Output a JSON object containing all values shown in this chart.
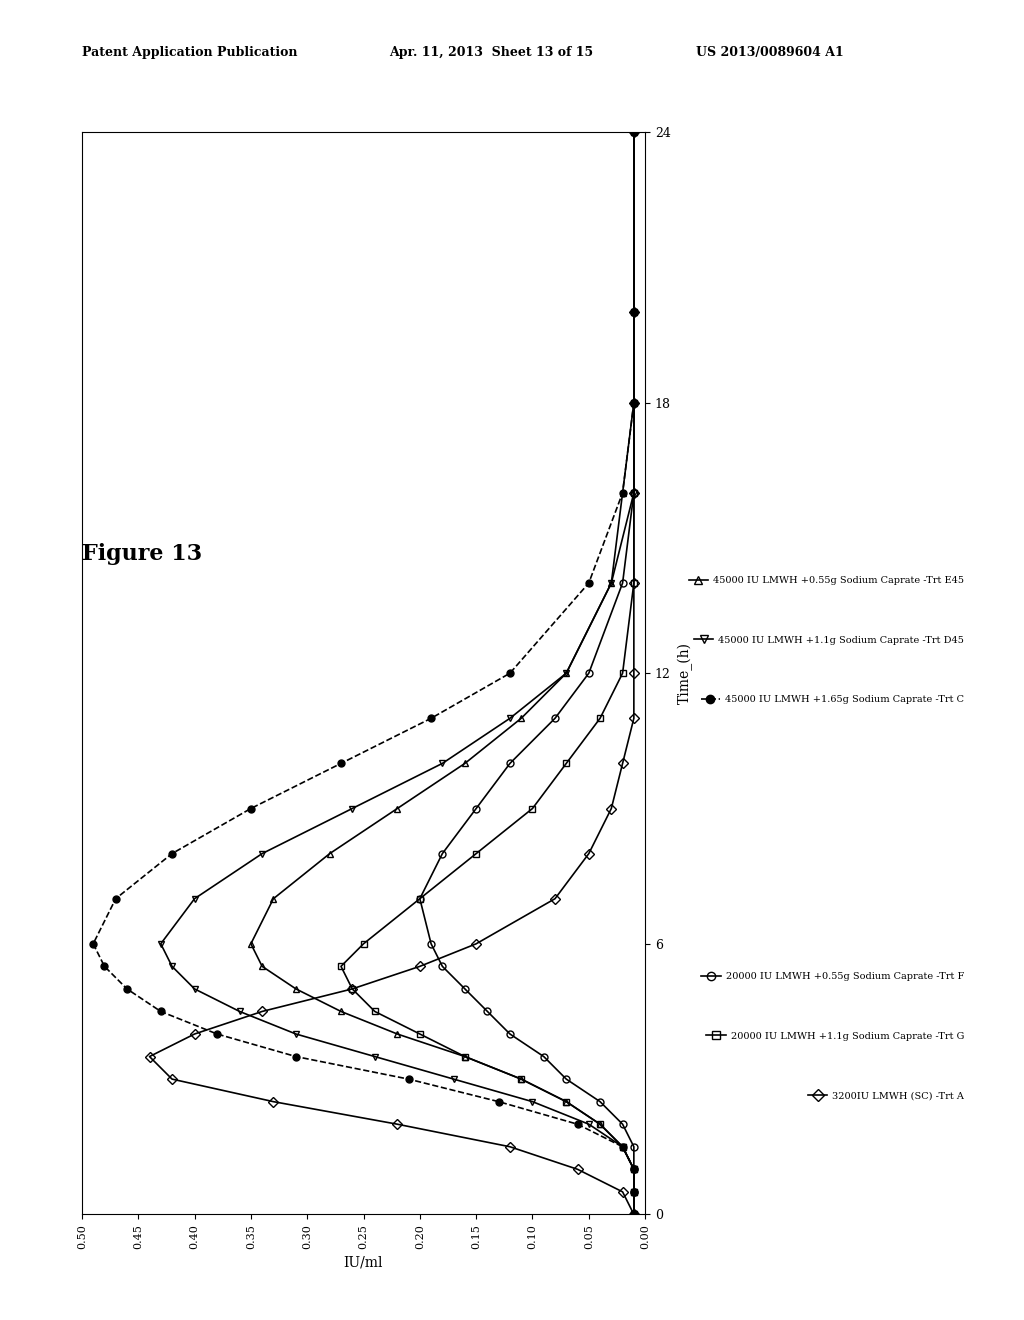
{
  "title": "Figure 13",
  "xlabel": "Time_(h)",
  "ylabel": "IU/ml",
  "header_left": "Patent Application Publication",
  "header_mid": "Apr. 11, 2013  Sheet 13 of 15",
  "header_right": "US 2013/0089604 A1",
  "xlim": [
    0,
    24
  ],
  "ylim": [
    0,
    0.5
  ],
  "xticks": [
    0,
    6,
    12,
    18,
    24
  ],
  "yticks": [
    0.0,
    0.05,
    0.1,
    0.15,
    0.2,
    0.25,
    0.3,
    0.35,
    0.4,
    0.45,
    0.5
  ],
  "series": [
    {
      "label": "20000 IU LMWH +0.55g Sodium Caprate -Trt F",
      "marker": "o",
      "fillstyle": "none",
      "color": "black",
      "linestyle": "-",
      "time": [
        0,
        0.5,
        1,
        1.5,
        2,
        2.5,
        3,
        3.5,
        4,
        4.5,
        5,
        5.5,
        6,
        7,
        8,
        9,
        10,
        11,
        12,
        14,
        16,
        18,
        20,
        24
      ],
      "values": [
        0.01,
        0.01,
        0.01,
        0.01,
        0.02,
        0.04,
        0.07,
        0.09,
        0.12,
        0.14,
        0.16,
        0.18,
        0.19,
        0.2,
        0.18,
        0.15,
        0.12,
        0.08,
        0.05,
        0.02,
        0.01,
        0.01,
        0.01,
        0.01
      ]
    },
    {
      "label": "20000 IU LMWH +1.1g Sodium Caprate -Trt G",
      "marker": "s",
      "fillstyle": "none",
      "color": "black",
      "linestyle": "-",
      "time": [
        0,
        0.5,
        1,
        1.5,
        2,
        2.5,
        3,
        3.5,
        4,
        4.5,
        5,
        5.5,
        6,
        7,
        8,
        9,
        10,
        11,
        12,
        14,
        16,
        18,
        20,
        24
      ],
      "values": [
        0.01,
        0.01,
        0.01,
        0.02,
        0.04,
        0.07,
        0.11,
        0.16,
        0.2,
        0.24,
        0.26,
        0.27,
        0.25,
        0.2,
        0.15,
        0.1,
        0.07,
        0.04,
        0.02,
        0.01,
        0.01,
        0.01,
        0.01,
        0.01
      ]
    },
    {
      "label": "3200IU LMWH (SC) -Trt A",
      "marker": "D",
      "fillstyle": "none",
      "color": "black",
      "linestyle": "-",
      "time": [
        0,
        0.5,
        1,
        1.5,
        2,
        2.5,
        3,
        3.5,
        4,
        4.5,
        5,
        5.5,
        6,
        7,
        8,
        9,
        10,
        11,
        12,
        14,
        16,
        18,
        20,
        24
      ],
      "values": [
        0.01,
        0.02,
        0.06,
        0.12,
        0.22,
        0.33,
        0.42,
        0.44,
        0.4,
        0.34,
        0.26,
        0.2,
        0.15,
        0.08,
        0.05,
        0.03,
        0.02,
        0.01,
        0.01,
        0.01,
        0.01,
        0.01,
        0.01,
        0.01
      ]
    },
    {
      "label": "45000 IU LMWH +0.55g Sodium Caprate -Trt E45",
      "marker": "^",
      "fillstyle": "none",
      "color": "black",
      "linestyle": "-",
      "time": [
        0,
        0.5,
        1,
        1.5,
        2,
        2.5,
        3,
        3.5,
        4,
        4.5,
        5,
        5.5,
        6,
        7,
        8,
        9,
        10,
        11,
        12,
        14,
        16,
        18,
        20,
        24
      ],
      "values": [
        0.01,
        0.01,
        0.01,
        0.02,
        0.04,
        0.07,
        0.11,
        0.16,
        0.22,
        0.27,
        0.31,
        0.34,
        0.35,
        0.33,
        0.28,
        0.22,
        0.16,
        0.11,
        0.07,
        0.03,
        0.02,
        0.01,
        0.01,
        0.01
      ]
    },
    {
      "label": "45000 IU LMWH +1.1g Sodium Caprate -Trt D45",
      "marker": "v",
      "fillstyle": "none",
      "color": "black",
      "linestyle": "-",
      "time": [
        0,
        0.5,
        1,
        1.5,
        2,
        2.5,
        3,
        3.5,
        4,
        4.5,
        5,
        5.5,
        6,
        7,
        8,
        9,
        10,
        11,
        12,
        14,
        16,
        18,
        20,
        24
      ],
      "values": [
        0.01,
        0.01,
        0.01,
        0.02,
        0.05,
        0.1,
        0.17,
        0.24,
        0.31,
        0.36,
        0.4,
        0.42,
        0.43,
        0.4,
        0.34,
        0.26,
        0.18,
        0.12,
        0.07,
        0.03,
        0.01,
        0.01,
        0.01,
        0.01
      ]
    },
    {
      "label": "45000 IU LMWH +1.65g Sodium Caprate -Trt C",
      "marker": "o",
      "fillstyle": "full",
      "color": "black",
      "linestyle": "--",
      "time": [
        0,
        0.5,
        1,
        1.5,
        2,
        2.5,
        3,
        3.5,
        4,
        4.5,
        5,
        5.5,
        6,
        7,
        8,
        9,
        10,
        11,
        12,
        14,
        16,
        18,
        20,
        24
      ],
      "values": [
        0.01,
        0.01,
        0.01,
        0.02,
        0.06,
        0.13,
        0.21,
        0.31,
        0.38,
        0.43,
        0.46,
        0.48,
        0.49,
        0.47,
        0.42,
        0.35,
        0.27,
        0.19,
        0.12,
        0.05,
        0.02,
        0.01,
        0.01,
        0.01
      ]
    }
  ],
  "background_color": "#ffffff",
  "figure_label": "Figure 13"
}
